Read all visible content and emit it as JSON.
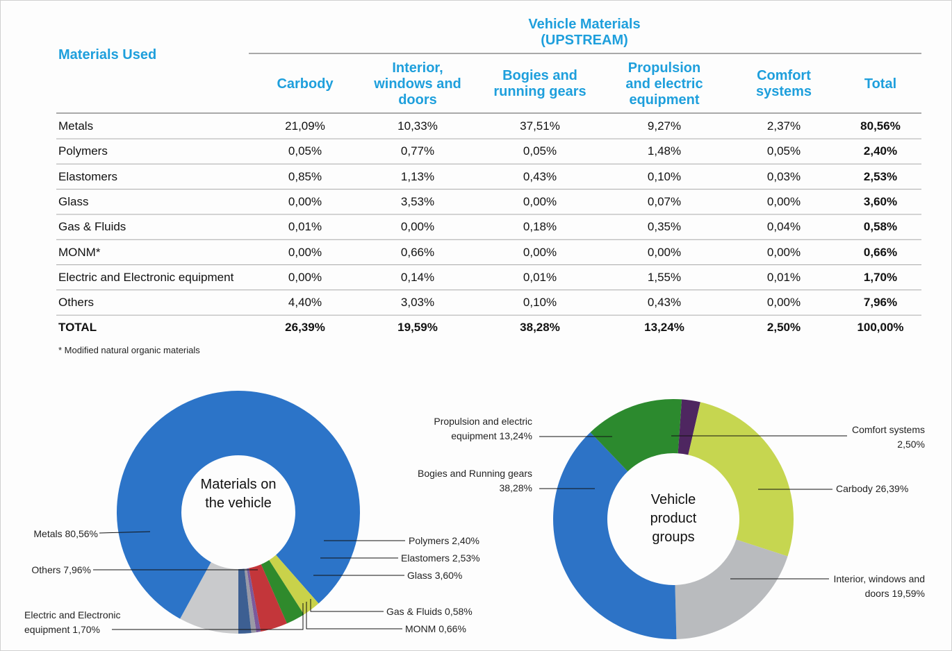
{
  "table": {
    "row_header": "Materials Used",
    "group_header": "Vehicle Materials (UPSTREAM)",
    "columns": [
      "Carbody",
      "Interior, windows and doors",
      "Bogies and running gears",
      "Propulsion and electric equipment",
      "Comfort systems",
      "Total"
    ],
    "rows": [
      {
        "label": "Metals",
        "values": [
          "21,09%",
          "10,33%",
          "37,51%",
          "9,27%",
          "2,37%",
          "80,56%"
        ]
      },
      {
        "label": "Polymers",
        "values": [
          "0,05%",
          "0,77%",
          "0,05%",
          "1,48%",
          "0,05%",
          "2,40%"
        ]
      },
      {
        "label": "Elastomers",
        "values": [
          "0,85%",
          "1,13%",
          "0,43%",
          "0,10%",
          "0,03%",
          "2,53%"
        ]
      },
      {
        "label": "Glass",
        "values": [
          "0,00%",
          "3,53%",
          "0,00%",
          "0,07%",
          "0,00%",
          "3,60%"
        ]
      },
      {
        "label": "Gas & Fluids",
        "values": [
          "0,01%",
          "0,00%",
          "0,18%",
          "0,35%",
          "0,04%",
          "0,58%"
        ]
      },
      {
        "label": "MONM*",
        "values": [
          "0,00%",
          "0,66%",
          "0,00%",
          "0,00%",
          "0,00%",
          "0,66%"
        ]
      },
      {
        "label": "Electric and Electronic equipment",
        "values": [
          "0,00%",
          "0,14%",
          "0,01%",
          "1,55%",
          "0,01%",
          "1,70%"
        ]
      },
      {
        "label": "Others",
        "values": [
          "4,40%",
          "3,03%",
          "0,10%",
          "0,43%",
          "0,00%",
          "7,96%"
        ]
      },
      {
        "label": "TOTAL",
        "values": [
          "26,39%",
          "19,59%",
          "38,28%",
          "13,24%",
          "2,50%",
          "100,00%"
        ]
      }
    ],
    "footnote": "* Modified natural organic materials"
  },
  "chart_data": [
    {
      "type": "donut",
      "title": "Materials on the vehicle",
      "categories": [
        "Others",
        "Metals",
        "Polymers",
        "Elastomers",
        "Glass",
        "Gas & Fluids",
        "MONM",
        "Electric and Electronic equipment"
      ],
      "values": [
        7.96,
        80.56,
        2.4,
        2.53,
        3.6,
        0.58,
        0.66,
        1.7
      ],
      "value_labels": [
        "7,96%",
        "80,56%",
        "2,40%",
        "2,53%",
        "3,60%",
        "0,58%",
        "0,66%",
        "1,70%"
      ],
      "colors": [
        "#c9cacc",
        "#2c74c8",
        "#c9d24a",
        "#2f8a2c",
        "#c3363a",
        "#7b5a9c",
        "#9a9aa6",
        "#3d5f92"
      ]
    },
    {
      "type": "donut",
      "title": "Vehicle product groups",
      "categories": [
        "Comfort systems",
        "Carbody",
        "Interior, windows and doors",
        "Bogies and Running gears",
        "Propulsion and electric equipment"
      ],
      "values": [
        2.5,
        26.39,
        19.59,
        38.28,
        13.24
      ],
      "value_labels": [
        "2,50%",
        "26,39%",
        "19,59%",
        "38,28%",
        "13,24%"
      ],
      "colors": [
        "#4e2660",
        "#c6d650",
        "#b9bbbe",
        "#2d73c6",
        "#2c8a2e"
      ]
    }
  ]
}
